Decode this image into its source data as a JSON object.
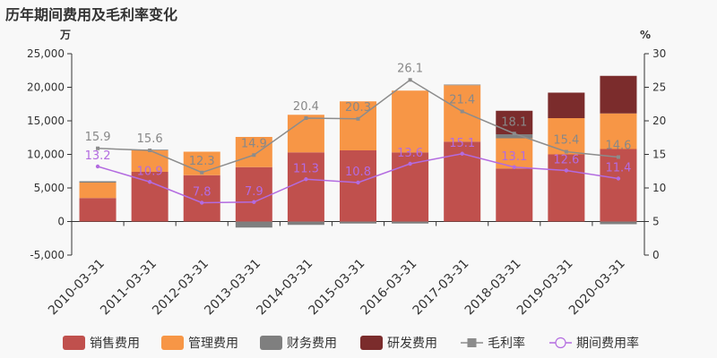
{
  "title": "历年期间费用及毛利率变化",
  "chart_data": {
    "type": "bar",
    "stacked": true,
    "title": "历年期间费用及毛利率变化",
    "y_left_unit": "万",
    "y_right_unit": "%",
    "ylim_left": [
      -5000,
      25000
    ],
    "ylim_right": [
      0,
      30
    ],
    "y_left_ticks": [
      "25,000",
      "20,000",
      "15,000",
      "10,000",
      "5,000",
      "0",
      "-5,000"
    ],
    "y_right_ticks": [
      "30",
      "25",
      "20",
      "15",
      "10",
      "5",
      "0"
    ],
    "categories": [
      "2010-03-31",
      "2011-03-31",
      "2012-03-31",
      "2013-03-31",
      "2014-03-31",
      "2015-03-31",
      "2016-03-31",
      "2017-03-31",
      "2018-03-31",
      "2019-03-31",
      "2020-03-31"
    ],
    "series": [
      {
        "name": "销售费用",
        "kind": "bar",
        "color": "#c0504d",
        "values": [
          3500,
          7400,
          6900,
          8100,
          10300,
          10600,
          10300,
          11900,
          7900,
          10000,
          10800
        ]
      },
      {
        "name": "管理费用",
        "kind": "bar",
        "color": "#f79646",
        "values": [
          2300,
          3200,
          3500,
          4500,
          5600,
          7300,
          9200,
          8400,
          4500,
          5400,
          5300
        ]
      },
      {
        "name": "财务费用",
        "kind": "bar",
        "color": "#7f7f7f",
        "values": [
          200,
          100,
          0,
          -900,
          -500,
          -300,
          -300,
          100,
          600,
          0,
          -400
        ]
      },
      {
        "name": "研发费用",
        "kind": "bar",
        "color": "#7b2c2c",
        "values": [
          0,
          0,
          0,
          0,
          0,
          0,
          0,
          0,
          3500,
          3800,
          5600
        ]
      },
      {
        "name": "毛利率",
        "kind": "line",
        "axis": "right",
        "color": "#8c8c8c",
        "values": [
          15.9,
          15.6,
          12.3,
          14.9,
          20.4,
          20.3,
          26.1,
          21.4,
          18.1,
          15.4,
          14.6
        ]
      },
      {
        "name": "期间费用率",
        "kind": "line",
        "axis": "right",
        "color": "#b36be0",
        "values": [
          13.2,
          10.9,
          7.8,
          7.9,
          11.3,
          10.8,
          13.6,
          15.1,
          13.1,
          12.6,
          11.4
        ]
      }
    ],
    "gm_labels": [
      "15.9",
      "15.6",
      "12.3",
      "14.9",
      "20.4",
      "20.3",
      "26.1",
      "21.4",
      "18.1",
      "15.4",
      "14.6"
    ],
    "pe_labels": [
      "13.2",
      "10.9",
      "7.8",
      "7.9",
      "11.3",
      "10.8",
      "13.6",
      "15.1",
      "13.1",
      "12.6",
      "11.4"
    ],
    "legend": [
      "销售费用",
      "管理费用",
      "财务费用",
      "研发费用",
      "毛利率",
      "期间费用率"
    ],
    "legend_position": "bottom",
    "grid": false
  }
}
